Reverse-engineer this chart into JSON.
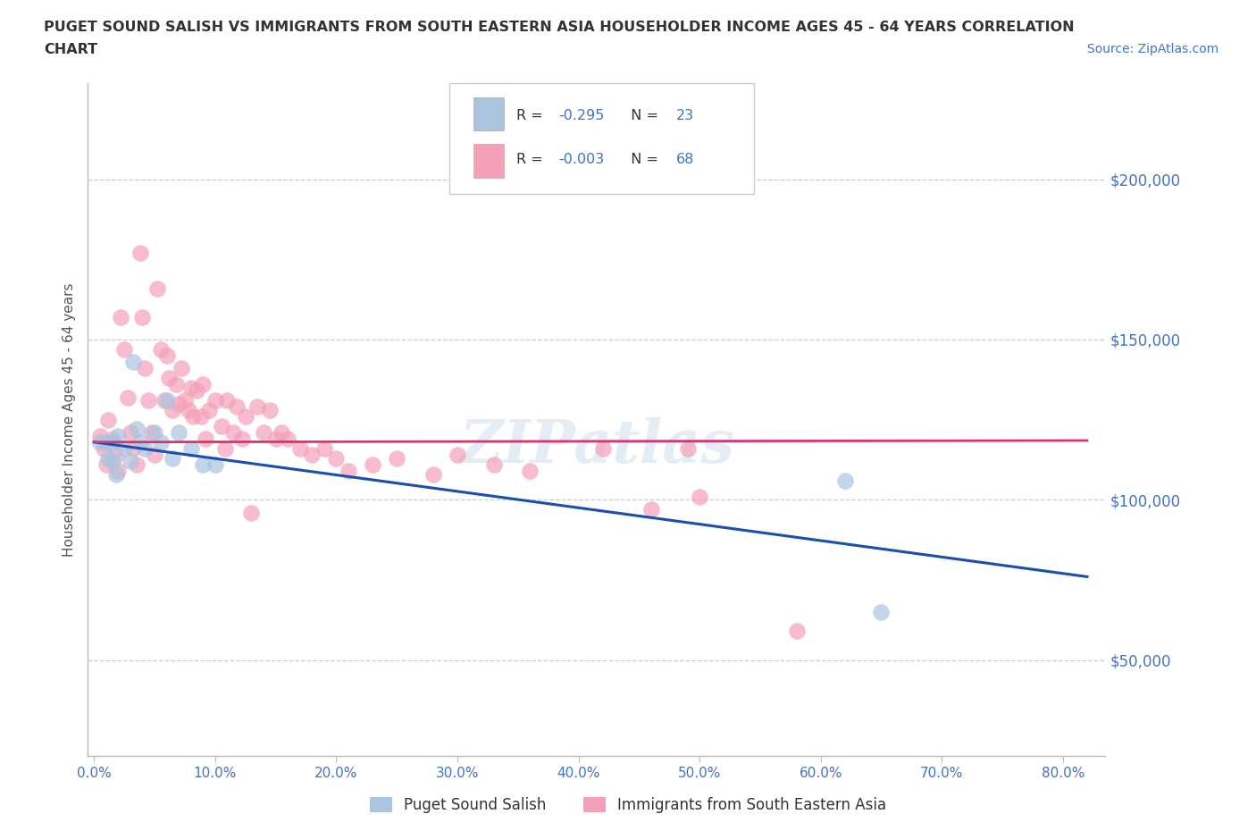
{
  "title_line1": "PUGET SOUND SALISH VS IMMIGRANTS FROM SOUTH EASTERN ASIA HOUSEHOLDER INCOME AGES 45 - 64 YEARS CORRELATION",
  "title_line2": "CHART",
  "source": "Source: ZipAtlas.com",
  "ylabel": "Householder Income Ages 45 - 64 years",
  "xlabel_ticks": [
    "0.0%",
    "10.0%",
    "20.0%",
    "30.0%",
    "40.0%",
    "50.0%",
    "60.0%",
    "70.0%",
    "80.0%"
  ],
  "ytick_labels": [
    "$50,000",
    "$100,000",
    "$150,000",
    "$200,000"
  ],
  "ytick_values": [
    50000,
    100000,
    150000,
    200000
  ],
  "ylim": [
    20000,
    230000
  ],
  "xlim": [
    -0.005,
    0.835
  ],
  "watermark": "ZIPatlas",
  "blue_scatter": [
    [
      0.005,
      118000
    ],
    [
      0.01,
      118000
    ],
    [
      0.012,
      113000
    ],
    [
      0.015,
      118000
    ],
    [
      0.015,
      112000
    ],
    [
      0.018,
      108000
    ],
    [
      0.02,
      120000
    ],
    [
      0.025,
      116000
    ],
    [
      0.03,
      112000
    ],
    [
      0.032,
      143000
    ],
    [
      0.035,
      122000
    ],
    [
      0.038,
      118000
    ],
    [
      0.042,
      116000
    ],
    [
      0.05,
      121000
    ],
    [
      0.055,
      118000
    ],
    [
      0.06,
      131000
    ],
    [
      0.065,
      113000
    ],
    [
      0.07,
      121000
    ],
    [
      0.08,
      116000
    ],
    [
      0.09,
      111000
    ],
    [
      0.1,
      111000
    ],
    [
      0.62,
      106000
    ],
    [
      0.65,
      65000
    ]
  ],
  "pink_scatter": [
    [
      0.005,
      120000
    ],
    [
      0.008,
      116000
    ],
    [
      0.01,
      111000
    ],
    [
      0.012,
      125000
    ],
    [
      0.015,
      119000
    ],
    [
      0.018,
      114000
    ],
    [
      0.02,
      109000
    ],
    [
      0.022,
      157000
    ],
    [
      0.025,
      147000
    ],
    [
      0.028,
      132000
    ],
    [
      0.03,
      121000
    ],
    [
      0.032,
      116000
    ],
    [
      0.035,
      111000
    ],
    [
      0.038,
      177000
    ],
    [
      0.04,
      157000
    ],
    [
      0.042,
      141000
    ],
    [
      0.045,
      131000
    ],
    [
      0.048,
      121000
    ],
    [
      0.05,
      114000
    ],
    [
      0.052,
      166000
    ],
    [
      0.055,
      147000
    ],
    [
      0.058,
      131000
    ],
    [
      0.06,
      145000
    ],
    [
      0.062,
      138000
    ],
    [
      0.065,
      128000
    ],
    [
      0.068,
      136000
    ],
    [
      0.07,
      130000
    ],
    [
      0.072,
      141000
    ],
    [
      0.075,
      131000
    ],
    [
      0.078,
      128000
    ],
    [
      0.08,
      135000
    ],
    [
      0.082,
      126000
    ],
    [
      0.085,
      134000
    ],
    [
      0.088,
      126000
    ],
    [
      0.09,
      136000
    ],
    [
      0.092,
      119000
    ],
    [
      0.095,
      128000
    ],
    [
      0.1,
      131000
    ],
    [
      0.105,
      123000
    ],
    [
      0.108,
      116000
    ],
    [
      0.11,
      131000
    ],
    [
      0.115,
      121000
    ],
    [
      0.118,
      129000
    ],
    [
      0.122,
      119000
    ],
    [
      0.125,
      126000
    ],
    [
      0.13,
      96000
    ],
    [
      0.135,
      129000
    ],
    [
      0.14,
      121000
    ],
    [
      0.145,
      128000
    ],
    [
      0.15,
      119000
    ],
    [
      0.155,
      121000
    ],
    [
      0.16,
      119000
    ],
    [
      0.17,
      116000
    ],
    [
      0.18,
      114000
    ],
    [
      0.19,
      116000
    ],
    [
      0.2,
      113000
    ],
    [
      0.21,
      109000
    ],
    [
      0.23,
      111000
    ],
    [
      0.25,
      113000
    ],
    [
      0.28,
      108000
    ],
    [
      0.3,
      114000
    ],
    [
      0.33,
      111000
    ],
    [
      0.36,
      109000
    ],
    [
      0.42,
      116000
    ],
    [
      0.46,
      97000
    ],
    [
      0.49,
      116000
    ],
    [
      0.5,
      101000
    ],
    [
      0.58,
      59000
    ]
  ],
  "blue_line_x": [
    0.0,
    0.82
  ],
  "blue_line_y": [
    118000,
    76000
  ],
  "pink_line_x": [
    0.0,
    0.82
  ],
  "pink_line_y": [
    118000,
    118500
  ],
  "bg_color": "#ffffff",
  "blue_color": "#aac4e0",
  "pink_color": "#f4a0b8",
  "blue_line_color": "#1a4fad",
  "pink_line_color": "#e03070",
  "grid_color": "#cccccc",
  "axis_text_color": "#555555",
  "source_color": "#4472c4",
  "tick_label_color": "#4472c4",
  "title_color": "#333333",
  "legend_r_blue": "-0.295",
  "legend_n_blue": "23",
  "legend_r_pink": "-0.003",
  "legend_n_pink": "68",
  "legend2_label_blue": "Puget Sound Salish",
  "legend2_label_pink": "Immigrants from South Eastern Asia"
}
